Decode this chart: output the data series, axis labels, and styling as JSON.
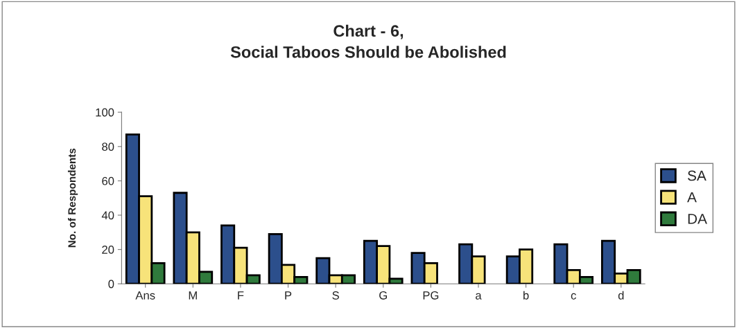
{
  "chart_data": {
    "type": "bar",
    "title": "Chart - 6,\nSocial Taboos Should be Abolished",
    "ylabel": "No. of Respondents",
    "categories": [
      "Ans",
      "M",
      "F",
      "P",
      "S",
      "G",
      "PG",
      "a",
      "b",
      "c",
      "d"
    ],
    "series": [
      {
        "name": "SA",
        "color": "#2c4f8c",
        "values": [
          87,
          53,
          34,
          29,
          15,
          25,
          18,
          23,
          16,
          23,
          25
        ]
      },
      {
        "name": "A",
        "color": "#f7e37a",
        "values": [
          51,
          30,
          21,
          11,
          5,
          22,
          12,
          16,
          20,
          8,
          6
        ]
      },
      {
        "name": "DA",
        "color": "#2f7a3c",
        "values": [
          12,
          7,
          5,
          4,
          5,
          3,
          null,
          null,
          null,
          4,
          8
        ]
      }
    ],
    "ylim": [
      0,
      100
    ],
    "yticks": [
      0,
      20,
      40,
      60,
      80,
      100
    ],
    "grid": false,
    "legend": "right"
  }
}
